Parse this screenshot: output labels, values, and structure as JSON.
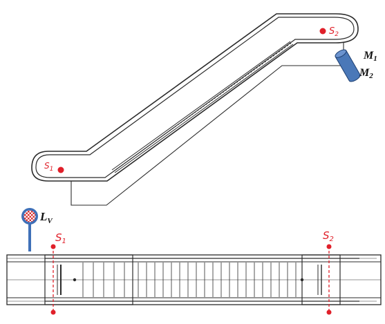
{
  "labels": {
    "motor_1": "M",
    "motor_1_sub": "1",
    "motor_2": "M",
    "motor_2_sub": "2",
    "light": "L",
    "light_sub": "V",
    "sensor_top_elev": "S",
    "sensor_top_elev_sub": "2",
    "sensor_bottom_elev": "S",
    "sensor_bottom_elev_sub": "1",
    "sensor_plan_left": "S",
    "sensor_plan_left_sub": "1",
    "sensor_plan_right": "S",
    "sensor_plan_right_sub": "2"
  },
  "colors": {
    "line": "#2a2a2a",
    "sensor": "#e0202a",
    "motor_fill": "#4a78b8",
    "motor_stroke": "#1e3f70",
    "lamp_fill": "#3f70b8",
    "lamp_pattern": "#d83030",
    "label": "#111111"
  },
  "icons": {
    "motor": "cylinder-motor-icon",
    "lamp": "signal-lamp-icon"
  }
}
